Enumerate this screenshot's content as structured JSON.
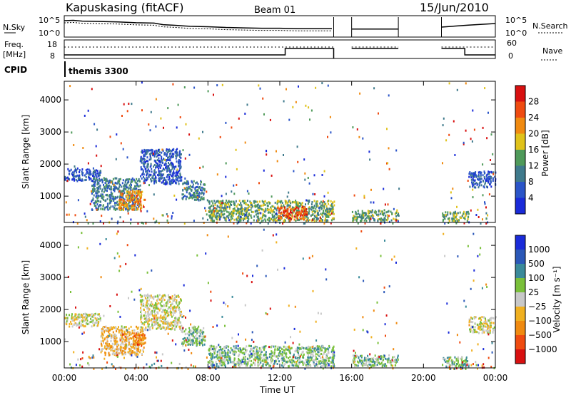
{
  "header": {
    "station": "Kapuskasing (fitACF)",
    "beam": "Beam 01",
    "date": "15/Jun/2010"
  },
  "colors": {
    "power_scale": [
      "#1a2bd9",
      "#2b55c8",
      "#3f7a8c",
      "#4f9a5a",
      "#e0c21a",
      "#f08a10",
      "#ef4b10",
      "#d81010"
    ],
    "velocity_scale": [
      "#1a2bd9",
      "#2b58b8",
      "#3a8a9a",
      "#7ac03a",
      "#c8c8c8",
      "#f0b020",
      "#f08a10",
      "#ef4b10",
      "#d81010"
    ]
  },
  "chart_data": [
    {
      "type": "line",
      "panel": "noise-search",
      "left_label": "N.Sky",
      "right_label": "N.Search",
      "left_ticks": [
        "10^5",
        "10^0"
      ],
      "right_ticks": [
        "10^5",
        "10^0"
      ],
      "gaps_ut": [
        [
          15.0,
          16.0
        ],
        [
          18.6,
          21.0
        ]
      ],
      "series": [
        {
          "x": [
            0.0,
            0.5,
            1.0,
            2.0,
            3.0,
            4.0,
            5.0,
            5.5,
            6.0,
            7.0,
            8.0,
            9.0,
            10.0,
            11.0,
            12.0,
            13.0,
            14.0,
            14.9
          ],
          "values": [
            4.1,
            4.2,
            4.0,
            3.9,
            3.8,
            3.6,
            3.5,
            3.1,
            3.0,
            2.7,
            2.6,
            2.4,
            2.3,
            2.2,
            2.2,
            2.1,
            2.1,
            2.1
          ]
        }
      ]
    },
    {
      "type": "line",
      "panel": "frequency-nave",
      "left_label": "Freq.",
      "left_unit": "[MHz]",
      "right_label": "Nave",
      "left_ticks": [
        "18",
        "8"
      ],
      "right_ticks": [
        "60",
        "0"
      ]
    },
    {
      "type": "table",
      "panel": "cpid",
      "label": "CPID",
      "mode": "themis 3300"
    },
    {
      "type": "heatmap",
      "panel": "power",
      "ylabel": "Slant Range [km]",
      "xlabel": "",
      "yticks": [
        "1000",
        "2000",
        "3000",
        "4000"
      ],
      "colorbar_label": "Power [dB]",
      "colorbar_ticks": [
        "4",
        "8",
        "12",
        "16",
        "20",
        "24",
        "28"
      ],
      "xlim_ut": [
        0,
        24
      ],
      "ylim_km": [
        180,
        4580
      ],
      "regions": [
        {
          "t0": 0.0,
          "t1": 2.0,
          "r0": 1500,
          "r1": 1900,
          "level": 1
        },
        {
          "t0": 1.5,
          "t1": 4.2,
          "r0": 600,
          "r1": 1600,
          "level": 2
        },
        {
          "t0": 3.0,
          "t1": 4.4,
          "r0": 600,
          "r1": 1200,
          "level": 5
        },
        {
          "t0": 4.2,
          "t1": 6.5,
          "r0": 1400,
          "r1": 2500,
          "level": 1
        },
        {
          "t0": 6.5,
          "t1": 7.8,
          "r0": 900,
          "r1": 1500,
          "level": 2
        },
        {
          "t0": 8.0,
          "t1": 15.0,
          "r0": 250,
          "r1": 900,
          "level": 3
        },
        {
          "t0": 11.8,
          "t1": 13.5,
          "r0": 300,
          "r1": 700,
          "level": 6
        },
        {
          "t0": 16.0,
          "t1": 18.6,
          "r0": 250,
          "r1": 600,
          "level": 3
        },
        {
          "t0": 21.0,
          "t1": 22.5,
          "r0": 250,
          "r1": 550,
          "level": 3
        },
        {
          "t0": 22.5,
          "t1": 24.0,
          "r0": 1300,
          "r1": 1800,
          "level": 1
        }
      ]
    },
    {
      "type": "heatmap",
      "panel": "velocity",
      "ylabel": "Slant Range [km]",
      "xlabel": "Time UT",
      "xticks": [
        "00:00",
        "04:00",
        "08:00",
        "12:00",
        "16:00",
        "20:00",
        "00:00"
      ],
      "yticks": [
        "1000",
        "2000",
        "3000",
        "4000"
      ],
      "colorbar_label": "Velocity [m s⁻¹]",
      "colorbar_ticks": [
        "1000",
        "500",
        "100",
        "25",
        "−25",
        "−100",
        "−500",
        "−1000"
      ],
      "xlim_ut": [
        0,
        24
      ],
      "ylim_km": [
        180,
        4580
      ],
      "regions": [
        {
          "t0": 0.0,
          "t1": 2.0,
          "r0": 1500,
          "r1": 1900,
          "level": 4
        },
        {
          "t0": 2.0,
          "t1": 4.4,
          "r0": 600,
          "r1": 1500,
          "level": 5
        },
        {
          "t0": 3.8,
          "t1": 4.5,
          "r0": 800,
          "r1": 1300,
          "level": 6
        },
        {
          "t0": 4.2,
          "t1": 6.5,
          "r0": 1400,
          "r1": 2500,
          "level": 4
        },
        {
          "t0": 6.5,
          "t1": 7.8,
          "r0": 900,
          "r1": 1500,
          "level": 3
        },
        {
          "t0": 8.0,
          "t1": 15.0,
          "r0": 250,
          "r1": 900,
          "level": 3
        },
        {
          "t0": 16.0,
          "t1": 18.6,
          "r0": 250,
          "r1": 600,
          "level": 3
        },
        {
          "t0": 21.0,
          "t1": 22.5,
          "r0": 250,
          "r1": 550,
          "level": 3
        },
        {
          "t0": 22.5,
          "t1": 24.0,
          "r0": 1300,
          "r1": 1800,
          "level": 4
        }
      ]
    }
  ]
}
